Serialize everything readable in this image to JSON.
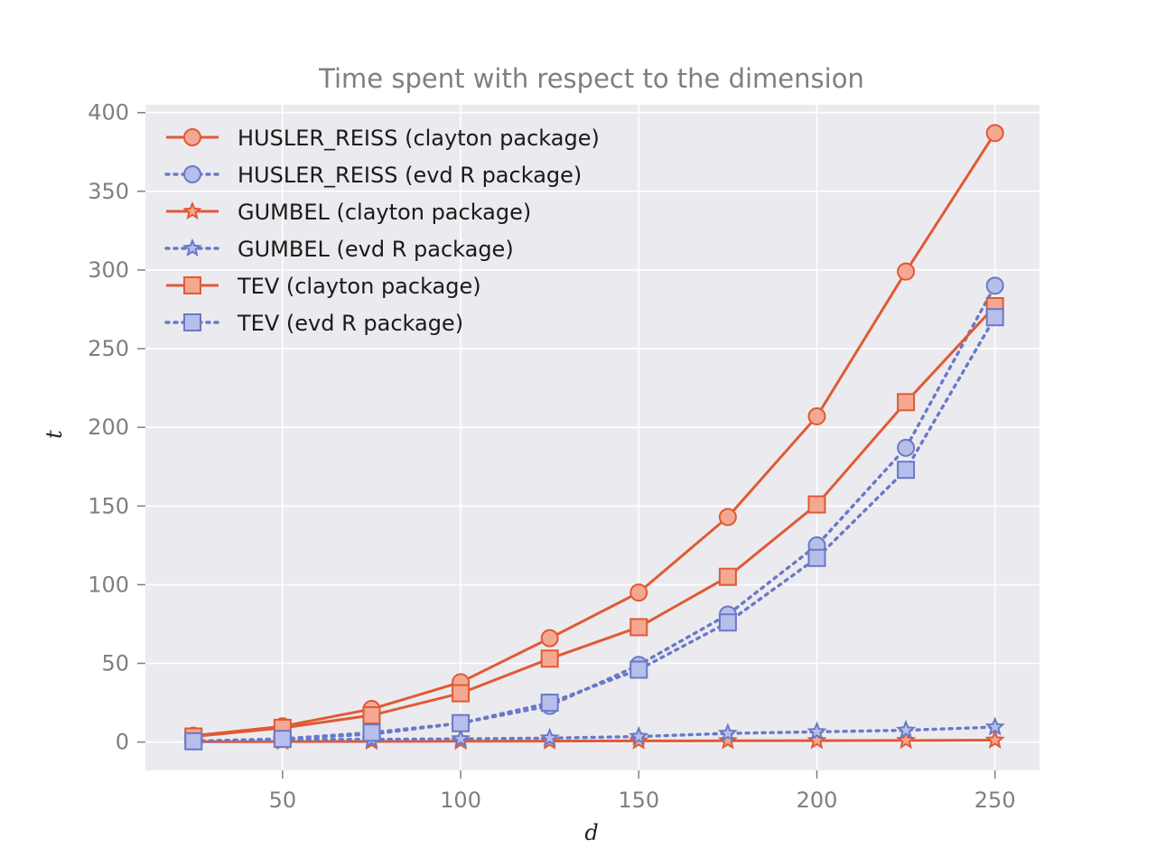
{
  "chart_data": {
    "type": "line",
    "title": "Time spent with respect to the dimension",
    "xlabel": "d",
    "ylabel": "t",
    "xlim": [
      11.5,
      262.5
    ],
    "ylim": [
      -18,
      405
    ],
    "xticks": [
      50,
      100,
      150,
      200,
      250
    ],
    "yticks": [
      0,
      50,
      100,
      150,
      200,
      250,
      300,
      350,
      400
    ],
    "grid": true,
    "legend_position": "top-left",
    "colors": {
      "clayton_line": "#e05a35",
      "clayton_fill": "#f4a891",
      "evd_line": "#6a78c8",
      "evd_fill": "#b6bfe9",
      "plot_bg": "#ebebef",
      "grid": "#ffffff"
    },
    "x": [
      25,
      50,
      75,
      100,
      125,
      150,
      175,
      200,
      225,
      250
    ],
    "series": [
      {
        "name": "HUSLER_REISS (clayton package)",
        "marker": "circle",
        "style": "solid",
        "package": "clayton",
        "values": [
          4,
          10,
          21,
          38,
          66,
          95,
          143,
          207,
          299,
          387
        ]
      },
      {
        "name": "HUSLER_REISS (evd R package)",
        "marker": "circle",
        "style": "dotted",
        "package": "evd",
        "values": [
          0.5,
          2,
          5,
          12,
          23,
          49,
          81,
          125,
          187,
          290
        ]
      },
      {
        "name": "GUMBEL (clayton package)",
        "marker": "star",
        "style": "solid",
        "package": "clayton",
        "values": [
          0.2,
          0.3,
          0.4,
          0.5,
          0.6,
          0.7,
          0.8,
          0.9,
          1.0,
          1.2
        ]
      },
      {
        "name": "GUMBEL (evd R package)",
        "marker": "star",
        "style": "dotted",
        "package": "evd",
        "values": [
          0.5,
          1.5,
          1.7,
          2.0,
          2.5,
          3.5,
          5.5,
          6.5,
          7.5,
          9.5
        ]
      },
      {
        "name": "TEV (clayton package)",
        "marker": "square",
        "style": "solid",
        "package": "clayton",
        "values": [
          3.5,
          9,
          17,
          31,
          53,
          73,
          105,
          151,
          216,
          277
        ]
      },
      {
        "name": "TEV (evd R package)",
        "marker": "square",
        "style": "dotted",
        "package": "evd",
        "values": [
          0.5,
          2,
          6,
          12,
          25,
          46,
          76,
          117,
          173,
          270
        ]
      }
    ]
  }
}
